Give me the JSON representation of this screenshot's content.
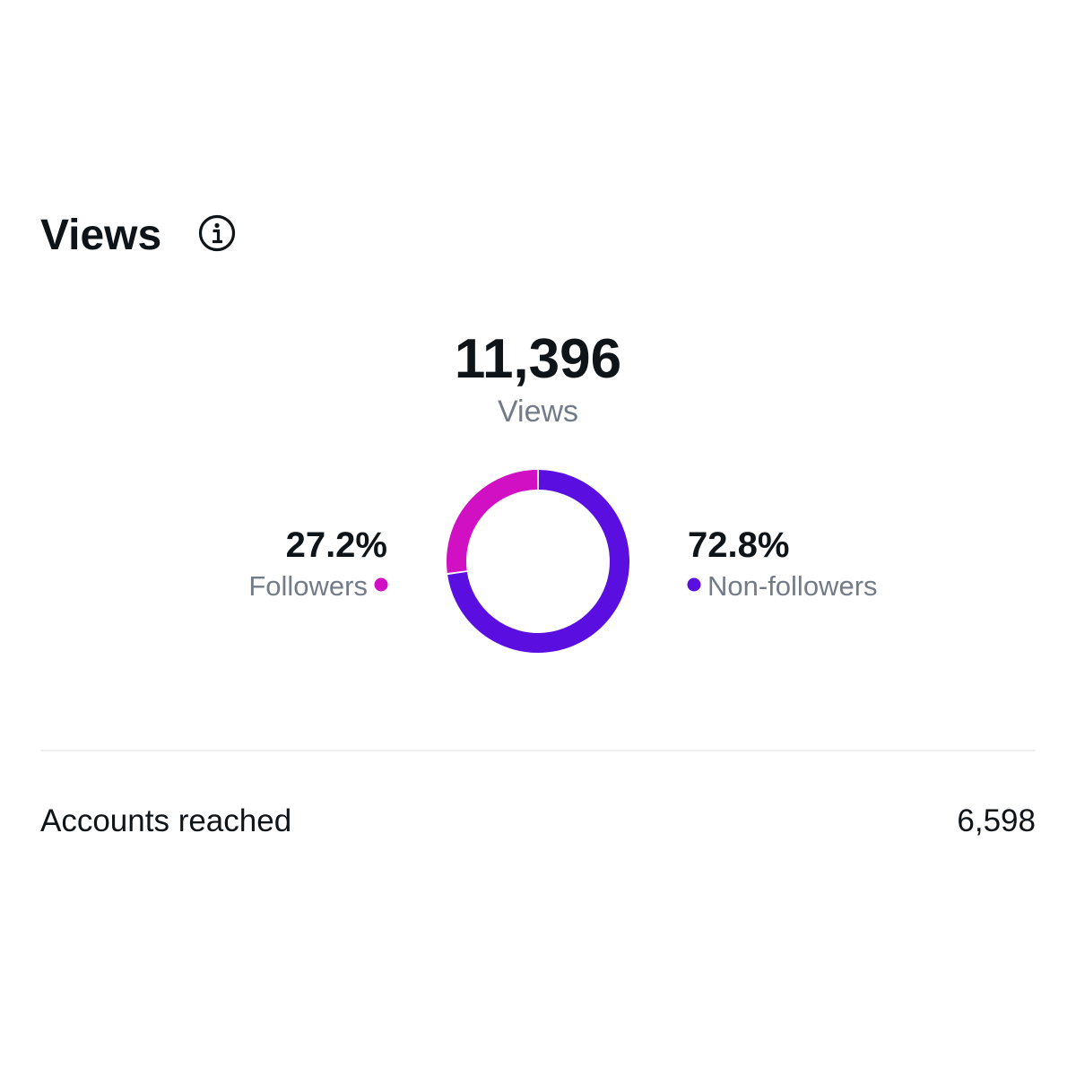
{
  "header": {
    "title": "Views"
  },
  "summary": {
    "value": "11,396",
    "label": "Views"
  },
  "chart_data": {
    "type": "donut",
    "categories": [
      "Followers",
      "Non-followers"
    ],
    "values": [
      27.2,
      72.8
    ],
    "value_labels": [
      "27.2%",
      "72.8%"
    ],
    "colors": [
      "#d10fc3",
      "#5a0ee0"
    ]
  },
  "metrics": [
    {
      "label": "Accounts reached",
      "value": "6,598"
    }
  ]
}
